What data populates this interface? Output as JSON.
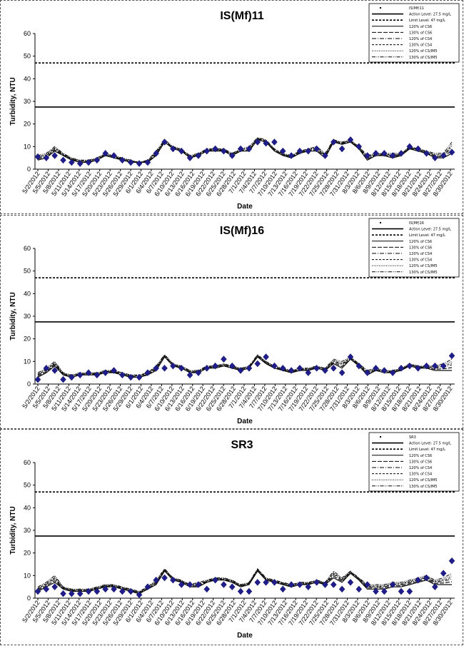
{
  "dates": [
    "5/2/2012",
    "5/5/2012",
    "5/8/2012",
    "5/11/2012",
    "5/14/2012",
    "5/17/2012",
    "5/20/2012",
    "5/23/2012",
    "5/26/2012",
    "5/29/2012",
    "6/1/2012",
    "6/4/2012",
    "6/7/2012",
    "6/10/2012",
    "6/13/2012",
    "6/16/2012",
    "6/19/2012",
    "6/22/2012",
    "6/25/2012",
    "6/28/2012",
    "7/1/2012",
    "7/4/2012",
    "7/7/2012",
    "7/10/2012",
    "7/13/2012",
    "7/16/2012",
    "7/19/2012",
    "7/22/2012",
    "7/25/2012",
    "7/28/2012",
    "7/31/2012",
    "8/3/2012",
    "8/6/2012",
    "8/9/2012",
    "8/12/2012",
    "8/15/2012",
    "8/18/2012",
    "8/21/2012",
    "8/24/2012",
    "8/27/2012",
    "8/30/2012"
  ],
  "ref_lines": {
    "action": 27.5,
    "limit": 47
  },
  "chart_data": [
    {
      "type": "scatter",
      "title": "IS(Mf)11",
      "xlabel": "Date",
      "ylabel": "Turbidity, NTU",
      "ylim": [
        0,
        60
      ],
      "yticks": [
        0,
        10,
        20,
        30,
        40,
        50,
        60
      ],
      "grid": false,
      "legend_position": "top-right",
      "legend": [
        "IS(Mf)11",
        "Action Level: 27.5 mg/L",
        "Limit Level: 47 mg/L",
        "120% of CS6",
        "130% of CS6",
        "120% of CS4",
        "130% of CS4",
        "120% of CS/IM5",
        "130% of CS/IM5"
      ],
      "series": [
        {
          "name": "IS(Mf)11",
          "style": "markers",
          "points": [
            [
              0,
              5.5
            ],
            [
              1,
              5
            ],
            [
              2,
              6
            ],
            [
              3,
              4
            ],
            [
              4,
              3
            ],
            [
              5,
              2.5
            ],
            [
              6,
              3
            ],
            [
              7,
              4
            ],
            [
              8,
              7
            ],
            [
              9,
              6
            ],
            [
              10,
              4
            ],
            [
              11,
              3
            ],
            [
              12,
              2.5
            ],
            [
              13,
              3
            ],
            [
              14,
              7
            ],
            [
              15,
              12
            ],
            [
              16,
              9
            ],
            [
              17,
              8
            ],
            [
              18,
              5
            ],
            [
              19,
              6
            ],
            [
              20,
              8
            ],
            [
              21,
              9
            ],
            [
              22,
              8
            ],
            [
              23,
              6
            ],
            [
              24,
              9
            ],
            [
              25,
              9
            ],
            [
              26,
              12
            ],
            [
              27,
              11.5
            ],
            [
              28,
              12
            ],
            [
              29,
              8
            ],
            [
              30,
              6
            ],
            [
              31,
              8
            ],
            [
              32,
              8
            ],
            [
              33,
              9
            ],
            [
              34,
              6
            ],
            [
              35,
              12
            ],
            [
              36,
              9
            ],
            [
              37,
              13
            ],
            [
              38,
              10
            ],
            [
              39,
              6
            ],
            [
              40,
              7
            ],
            [
              41,
              7
            ],
            [
              42,
              6
            ],
            [
              43,
              7
            ],
            [
              44,
              10
            ],
            [
              45,
              9
            ],
            [
              46,
              7
            ],
            [
              47,
              5
            ],
            [
              48,
              6
            ],
            [
              49,
              7.5
            ]
          ]
        },
        {
          "name": "Action Level: 27.5 mg/L",
          "style": "solid",
          "y": 27.5
        },
        {
          "name": "Limit Level: 47 mg/L",
          "style": "dashed",
          "y": 47
        }
      ],
      "bands": {
        "base": [
          4,
          5,
          8,
          6,
          4,
          3,
          3,
          4,
          6,
          5,
          4,
          3,
          3,
          3,
          6,
          12,
          9,
          8,
          5,
          6,
          8,
          8,
          8,
          6,
          8,
          8,
          13,
          12,
          8,
          6,
          5,
          7,
          8,
          8,
          5,
          12,
          11,
          12,
          9,
          4,
          6,
          6,
          5,
          6,
          9,
          8,
          7,
          5,
          5,
          7
        ],
        "max": [
          6,
          7,
          10,
          7,
          5,
          4,
          4,
          5,
          7,
          6,
          5,
          4,
          3,
          4,
          8,
          13,
          10,
          9,
          6,
          7,
          9,
          9,
          9,
          7,
          9,
          10,
          14,
          13,
          9,
          7,
          6,
          8,
          9,
          10,
          7,
          13,
          12,
          13,
          10,
          6,
          7,
          7,
          7,
          7,
          10,
          9,
          8,
          7,
          7,
          12
        ]
      }
    },
    {
      "type": "scatter",
      "title": "IS(Mf)16",
      "xlabel": "Date",
      "ylabel": "Turbidity, NTU",
      "ylim": [
        0,
        60
      ],
      "yticks": [
        0,
        10,
        20,
        30,
        40,
        50,
        60
      ],
      "grid": false,
      "legend_position": "top-right",
      "legend": [
        "IS(Mf)16",
        "Action Level: 27.5 mg/L",
        "Limit Level: 47 mg/L",
        "120% of CS6",
        "130% of CS6",
        "120% of CS4",
        "130% of CS4",
        "120% of CS/IM5",
        "130% of CS/IM5"
      ],
      "series": [
        {
          "name": "IS(Mf)16",
          "style": "markers",
          "points": [
            [
              0,
              2
            ],
            [
              1,
              7
            ],
            [
              2,
              6
            ],
            [
              3,
              2
            ],
            [
              4,
              3
            ],
            [
              5,
              4
            ],
            [
              6,
              5
            ],
            [
              7,
              4
            ],
            [
              8,
              5
            ],
            [
              9,
              6
            ],
            [
              10,
              4
            ],
            [
              11,
              3
            ],
            [
              12,
              3
            ],
            [
              13,
              5
            ],
            [
              14,
              7
            ],
            [
              15,
              7
            ],
            [
              16,
              8
            ],
            [
              17,
              7
            ],
            [
              18,
              4
            ],
            [
              19,
              5
            ],
            [
              20,
              7
            ],
            [
              21,
              8
            ],
            [
              22,
              11
            ],
            [
              23,
              8
            ],
            [
              24,
              6
            ],
            [
              25,
              7
            ],
            [
              26,
              9
            ],
            [
              27,
              12
            ],
            [
              28,
              8
            ],
            [
              29,
              7
            ],
            [
              30,
              6
            ],
            [
              31,
              7
            ],
            [
              32,
              5
            ],
            [
              33,
              7
            ],
            [
              34,
              6
            ],
            [
              35,
              7
            ],
            [
              36,
              5
            ],
            [
              37,
              12
            ],
            [
              38,
              8
            ],
            [
              39,
              5
            ],
            [
              40,
              7
            ],
            [
              41,
              6
            ],
            [
              42,
              5
            ],
            [
              43,
              7
            ],
            [
              44,
              8
            ],
            [
              45,
              7
            ],
            [
              46,
              8
            ],
            [
              47,
              8
            ],
            [
              48,
              8
            ],
            [
              49,
              12.5
            ]
          ]
        },
        {
          "name": "Action Level: 27.5 mg/L",
          "style": "solid",
          "y": 27.5
        },
        {
          "name": "Limit Level: 47 mg/L",
          "style": "dashed",
          "y": 47
        }
      ],
      "bands": {
        "base": [
          3,
          5,
          8,
          4,
          3,
          4,
          4,
          4,
          5,
          5,
          4,
          3,
          3,
          4,
          6,
          12,
          8,
          7,
          5,
          5,
          7,
          7,
          8,
          7,
          6,
          7,
          12,
          9,
          7,
          6,
          5,
          6,
          6,
          7,
          6,
          9,
          7,
          11,
          8,
          4,
          6,
          5,
          5,
          6,
          8,
          7,
          7,
          6,
          6,
          6
        ],
        "max": [
          5,
          7,
          10,
          5,
          4,
          5,
          5,
          5,
          6,
          6,
          5,
          4,
          4,
          5,
          8,
          13,
          9,
          8,
          6,
          6,
          8,
          8,
          9,
          8,
          7,
          8,
          13,
          10,
          8,
          7,
          6,
          7,
          7,
          8,
          7,
          11,
          10,
          12,
          9,
          6,
          7,
          6,
          6,
          7,
          9,
          8,
          8,
          8,
          9,
          11
        ]
      }
    },
    {
      "type": "scatter",
      "title": "SR3",
      "xlabel": "Date",
      "ylabel": "Turbidity, NTU",
      "ylim": [
        0,
        60
      ],
      "yticks": [
        0,
        10,
        20,
        30,
        40,
        50,
        60
      ],
      "grid": false,
      "legend_position": "top-right",
      "legend": [
        "SR3",
        "Action Level: 27.5 mg/L",
        "Limit Level: 47 mg/L",
        "120% of CS6",
        "130% of CS6",
        "120% of CS4",
        "130% of CS4",
        "120% of CS/IM5",
        "130% of CS/IM5"
      ],
      "series": [
        {
          "name": "SR3",
          "style": "markers",
          "points": [
            [
              0,
              3
            ],
            [
              1,
              4
            ],
            [
              2,
              5
            ],
            [
              3,
              2
            ],
            [
              4,
              2
            ],
            [
              5,
              2
            ],
            [
              6,
              3
            ],
            [
              7,
              3
            ],
            [
              8,
              4
            ],
            [
              9,
              4
            ],
            [
              10,
              3
            ],
            [
              11,
              3
            ],
            [
              12,
              1.5
            ],
            [
              13,
              5
            ],
            [
              14,
              8
            ],
            [
              15,
              9
            ],
            [
              16,
              8
            ],
            [
              17,
              6
            ],
            [
              18,
              6
            ],
            [
              19,
              6
            ],
            [
              20,
              4
            ],
            [
              21,
              8
            ],
            [
              22,
              6
            ],
            [
              23,
              5
            ],
            [
              24,
              3
            ],
            [
              25,
              3
            ],
            [
              26,
              7
            ],
            [
              27,
              7
            ],
            [
              28,
              7
            ],
            [
              29,
              4
            ],
            [
              30,
              6
            ],
            [
              31,
              6
            ],
            [
              32,
              5
            ],
            [
              33,
              7
            ],
            [
              34,
              6
            ],
            [
              35,
              6
            ],
            [
              36,
              4
            ],
            [
              37,
              7
            ],
            [
              38,
              4
            ],
            [
              39,
              6
            ],
            [
              40,
              3
            ],
            [
              41,
              3
            ],
            [
              42,
              6
            ],
            [
              43,
              3
            ],
            [
              44,
              3
            ],
            [
              45,
              8
            ],
            [
              46,
              9
            ],
            [
              47,
              5
            ],
            [
              48,
              11
            ],
            [
              49,
              16.5
            ]
          ]
        },
        {
          "name": "Action Level: 27.5 mg/L",
          "style": "solid",
          "y": 27.5
        },
        {
          "name": "Limit Level: 47 mg/L",
          "style": "dashed",
          "y": 47
        }
      ],
      "bands": {
        "base": [
          3,
          5,
          7,
          4,
          3,
          3,
          3,
          4,
          5,
          5,
          4,
          3,
          2,
          4,
          6,
          12,
          8,
          7,
          5,
          5,
          7,
          8,
          8,
          7,
          5,
          6,
          12,
          8,
          7,
          6,
          5,
          6,
          6,
          7,
          6,
          9,
          7,
          11,
          8,
          4,
          4,
          4,
          5,
          5,
          6,
          7,
          8,
          6,
          6,
          6
        ],
        "max": [
          5,
          7,
          10,
          5,
          4,
          4,
          4,
          5,
          6,
          6,
          5,
          4,
          3,
          5,
          8,
          13,
          9,
          8,
          6,
          7,
          8,
          9,
          9,
          8,
          6,
          7,
          13,
          9,
          8,
          7,
          6,
          7,
          7,
          8,
          7,
          12,
          9,
          12,
          9,
          6,
          6,
          6,
          7,
          7,
          8,
          9,
          10,
          8,
          9,
          11
        ]
      }
    }
  ]
}
